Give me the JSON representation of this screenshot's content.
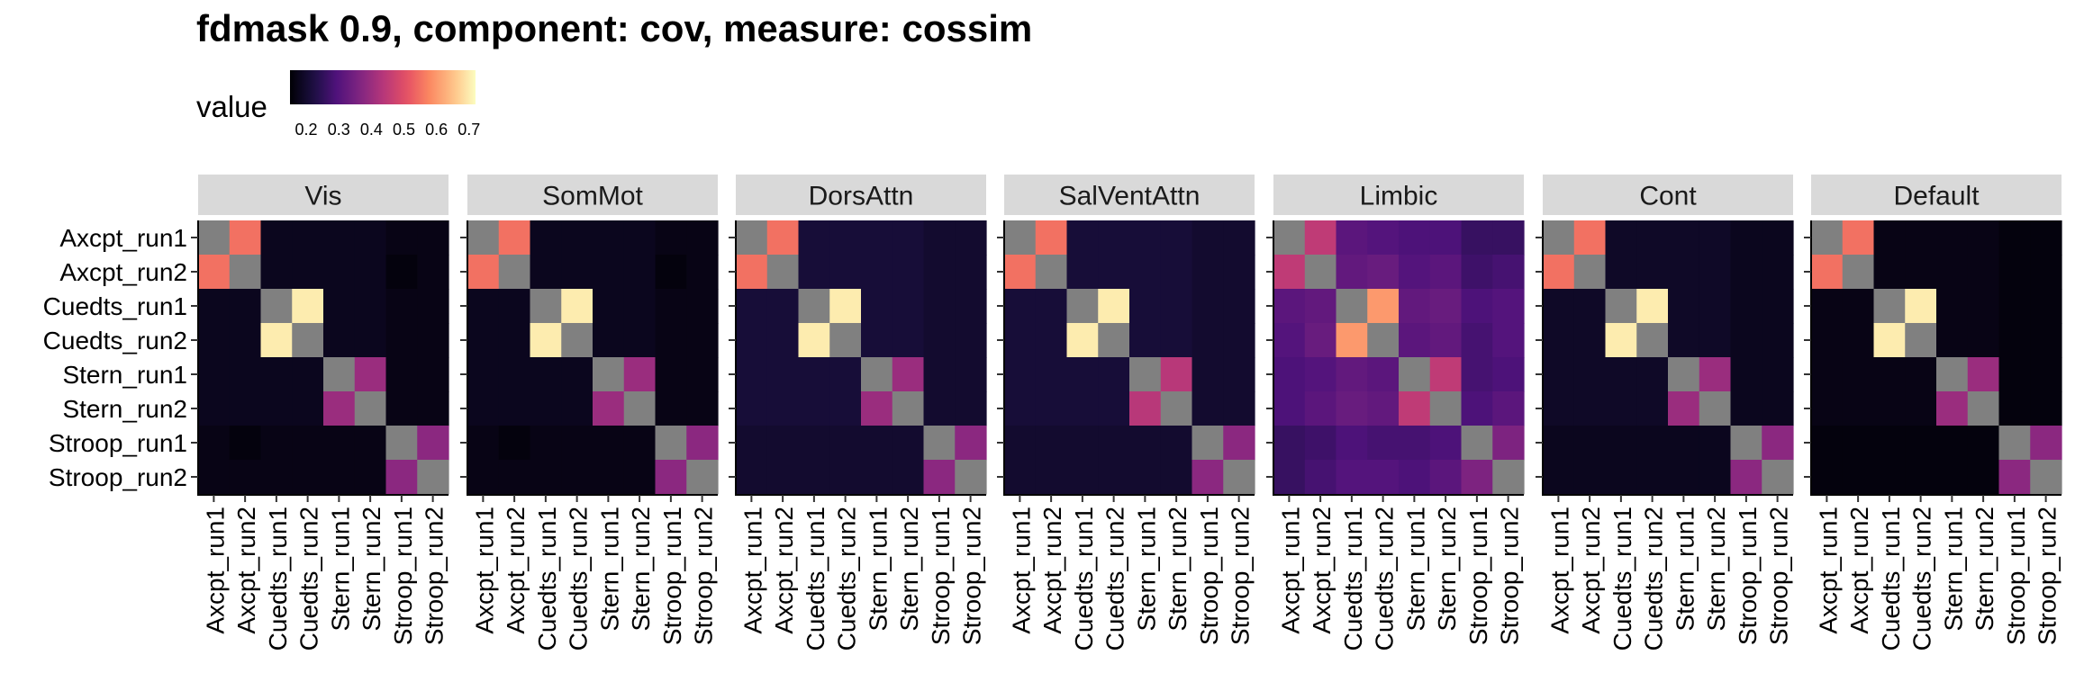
{
  "chart_data": {
    "type": "heatmap",
    "title": "fdmask 0.9, component: cov, measure: cossim",
    "legend": {
      "title": "value",
      "ticks": [
        "0.2",
        "0.3",
        "0.4",
        "0.5",
        "0.6",
        "0.7"
      ],
      "range": [
        0.15,
        0.72
      ],
      "palette": "magma",
      "placement": "top-left"
    },
    "runs": [
      "Axcpt_run1",
      "Axcpt_run2",
      "Cuedts_run1",
      "Cuedts_run2",
      "Stern_run1",
      "Stern_run2",
      "Stroop_run1",
      "Stroop_run2"
    ],
    "diagonal_color": "#808080",
    "panels": [
      {
        "name": "Vis",
        "values": [
          [
            null,
            0.55,
            0.18,
            0.18,
            0.18,
            0.18,
            0.17,
            0.17
          ],
          [
            0.55,
            null,
            0.18,
            0.18,
            0.18,
            0.18,
            0.16,
            0.17
          ],
          [
            0.18,
            0.18,
            null,
            0.7,
            0.18,
            0.18,
            0.17,
            0.17
          ],
          [
            0.18,
            0.18,
            0.7,
            null,
            0.18,
            0.18,
            0.17,
            0.17
          ],
          [
            0.18,
            0.18,
            0.18,
            0.18,
            null,
            0.4,
            0.17,
            0.17
          ],
          [
            0.18,
            0.18,
            0.18,
            0.18,
            0.4,
            null,
            0.17,
            0.17
          ],
          [
            0.17,
            0.16,
            0.17,
            0.17,
            0.17,
            0.17,
            null,
            0.38
          ],
          [
            0.17,
            0.17,
            0.17,
            0.17,
            0.17,
            0.17,
            0.38,
            null
          ]
        ]
      },
      {
        "name": "SomMot",
        "values": [
          [
            null,
            0.55,
            0.18,
            0.18,
            0.18,
            0.18,
            0.17,
            0.17
          ],
          [
            0.55,
            null,
            0.18,
            0.18,
            0.18,
            0.18,
            0.16,
            0.17
          ],
          [
            0.18,
            0.18,
            null,
            0.7,
            0.18,
            0.18,
            0.17,
            0.17
          ],
          [
            0.18,
            0.18,
            0.7,
            null,
            0.18,
            0.18,
            0.17,
            0.17
          ],
          [
            0.18,
            0.18,
            0.18,
            0.18,
            null,
            0.4,
            0.17,
            0.17
          ],
          [
            0.18,
            0.18,
            0.18,
            0.18,
            0.4,
            null,
            0.17,
            0.17
          ],
          [
            0.17,
            0.16,
            0.17,
            0.17,
            0.17,
            0.17,
            null,
            0.38
          ],
          [
            0.17,
            0.17,
            0.17,
            0.17,
            0.17,
            0.17,
            0.38,
            null
          ]
        ]
      },
      {
        "name": "DorsAttn",
        "values": [
          [
            null,
            0.55,
            0.21,
            0.21,
            0.21,
            0.21,
            0.2,
            0.2
          ],
          [
            0.55,
            null,
            0.21,
            0.21,
            0.21,
            0.21,
            0.2,
            0.2
          ],
          [
            0.21,
            0.21,
            null,
            0.7,
            0.21,
            0.21,
            0.2,
            0.2
          ],
          [
            0.21,
            0.21,
            0.7,
            null,
            0.21,
            0.21,
            0.2,
            0.2
          ],
          [
            0.21,
            0.21,
            0.21,
            0.21,
            null,
            0.4,
            0.2,
            0.2
          ],
          [
            0.21,
            0.21,
            0.21,
            0.21,
            0.4,
            null,
            0.2,
            0.2
          ],
          [
            0.2,
            0.2,
            0.2,
            0.2,
            0.2,
            0.2,
            null,
            0.38
          ],
          [
            0.2,
            0.2,
            0.2,
            0.2,
            0.2,
            0.2,
            0.38,
            null
          ]
        ]
      },
      {
        "name": "SalVentAttn",
        "values": [
          [
            null,
            0.55,
            0.21,
            0.21,
            0.21,
            0.21,
            0.2,
            0.2
          ],
          [
            0.55,
            null,
            0.21,
            0.21,
            0.21,
            0.21,
            0.2,
            0.2
          ],
          [
            0.21,
            0.21,
            null,
            0.7,
            0.21,
            0.21,
            0.2,
            0.2
          ],
          [
            0.21,
            0.21,
            0.7,
            null,
            0.21,
            0.21,
            0.2,
            0.2
          ],
          [
            0.21,
            0.21,
            0.21,
            0.21,
            null,
            0.44,
            0.2,
            0.2
          ],
          [
            0.21,
            0.21,
            0.21,
            0.21,
            0.44,
            null,
            0.2,
            0.2
          ],
          [
            0.2,
            0.2,
            0.2,
            0.2,
            0.2,
            0.2,
            null,
            0.38
          ],
          [
            0.2,
            0.2,
            0.2,
            0.2,
            0.2,
            0.2,
            0.38,
            null
          ]
        ]
      },
      {
        "name": "Limbic",
        "values": [
          [
            null,
            0.45,
            0.31,
            0.3,
            0.29,
            0.29,
            0.26,
            0.26
          ],
          [
            0.45,
            null,
            0.32,
            0.33,
            0.3,
            0.31,
            0.27,
            0.28
          ],
          [
            0.31,
            0.32,
            null,
            0.6,
            0.32,
            0.33,
            0.29,
            0.3
          ],
          [
            0.3,
            0.33,
            0.6,
            null,
            0.31,
            0.32,
            0.28,
            0.3
          ],
          [
            0.29,
            0.3,
            0.32,
            0.31,
            null,
            0.45,
            0.28,
            0.29
          ],
          [
            0.29,
            0.31,
            0.33,
            0.32,
            0.45,
            null,
            0.29,
            0.31
          ],
          [
            0.26,
            0.27,
            0.29,
            0.28,
            0.28,
            0.29,
            null,
            0.36
          ],
          [
            0.26,
            0.28,
            0.3,
            0.3,
            0.29,
            0.31,
            0.36,
            null
          ]
        ]
      },
      {
        "name": "Cont",
        "values": [
          [
            null,
            0.55,
            0.19,
            0.19,
            0.19,
            0.19,
            0.18,
            0.18
          ],
          [
            0.55,
            null,
            0.19,
            0.19,
            0.19,
            0.19,
            0.18,
            0.18
          ],
          [
            0.19,
            0.19,
            null,
            0.7,
            0.19,
            0.19,
            0.18,
            0.18
          ],
          [
            0.19,
            0.19,
            0.7,
            null,
            0.19,
            0.19,
            0.18,
            0.18
          ],
          [
            0.19,
            0.19,
            0.19,
            0.19,
            null,
            0.4,
            0.18,
            0.18
          ],
          [
            0.19,
            0.19,
            0.19,
            0.19,
            0.4,
            null,
            0.18,
            0.18
          ],
          [
            0.18,
            0.18,
            0.18,
            0.18,
            0.18,
            0.18,
            null,
            0.38
          ],
          [
            0.18,
            0.18,
            0.18,
            0.18,
            0.18,
            0.18,
            0.38,
            null
          ]
        ]
      },
      {
        "name": "Default",
        "values": [
          [
            null,
            0.55,
            0.17,
            0.17,
            0.17,
            0.17,
            0.16,
            0.16
          ],
          [
            0.55,
            null,
            0.17,
            0.17,
            0.17,
            0.17,
            0.16,
            0.16
          ],
          [
            0.17,
            0.17,
            null,
            0.7,
            0.17,
            0.17,
            0.16,
            0.16
          ],
          [
            0.17,
            0.17,
            0.7,
            null,
            0.17,
            0.17,
            0.16,
            0.16
          ],
          [
            0.17,
            0.17,
            0.17,
            0.17,
            null,
            0.4,
            0.16,
            0.16
          ],
          [
            0.17,
            0.17,
            0.17,
            0.17,
            0.4,
            null,
            0.16,
            0.16
          ],
          [
            0.16,
            0.16,
            0.16,
            0.16,
            0.16,
            0.16,
            null,
            0.38
          ],
          [
            0.16,
            0.16,
            0.16,
            0.16,
            0.16,
            0.16,
            0.38,
            null
          ]
        ]
      }
    ]
  }
}
